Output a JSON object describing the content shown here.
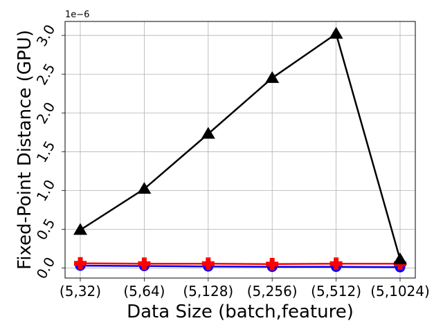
{
  "chart_data": {
    "type": "line",
    "categories": [
      "(5,32)",
      "(5,64)",
      "(5,128)",
      "(5,256)",
      "(5,512)",
      "(5,1024)"
    ],
    "xlabel": "Data Size (batch,feature)",
    "ylabel": "Fixed-Point Distance (GPU)",
    "y_scale_label": "1e−6",
    "y_multiplier": 1e-06,
    "ylim": [
      -0.13,
      3.18
    ],
    "yticks": [
      0.0,
      0.5,
      1.0,
      1.5,
      2.0,
      2.5,
      3.0
    ],
    "ytick_labels": [
      "0.0",
      "0.5",
      "1.0",
      "1.5",
      "2.0",
      "2.5",
      "3.0"
    ],
    "grid": true,
    "legend": "none",
    "series": [
      {
        "color": "#000000",
        "marker": "triangle",
        "values": [
          0.49,
          1.02,
          1.73,
          2.45,
          3.02,
          0.11
        ]
      },
      {
        "color": "#0000ff",
        "marker": "circle",
        "values": [
          0.03,
          0.025,
          0.02,
          0.015,
          0.015,
          0.01
        ]
      },
      {
        "color": "#ff0000",
        "marker": "plus",
        "values": [
          0.06,
          0.055,
          0.055,
          0.05,
          0.055,
          0.055
        ]
      }
    ]
  }
}
